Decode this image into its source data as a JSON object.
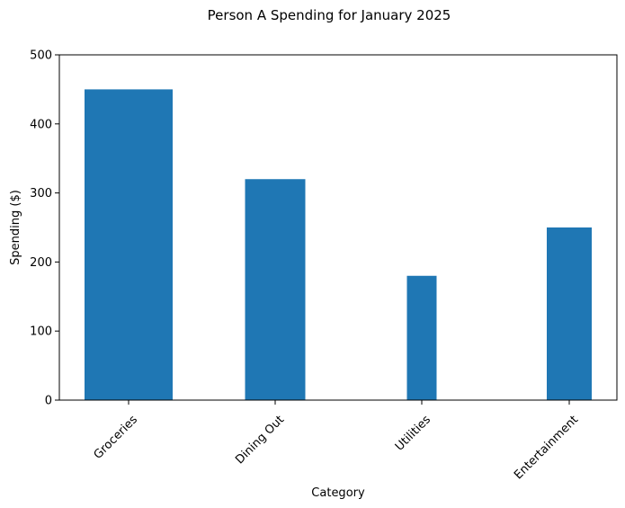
{
  "chart_data": {
    "type": "bar",
    "title": "Person A Spending for January 2025",
    "xlabel": "Category",
    "ylabel": "Spending ($)",
    "categories": [
      "Groceries",
      "Dining Out",
      "Utilities",
      "Entertainment"
    ],
    "values": [
      450,
      320,
      180,
      250
    ],
    "ylim": [
      0,
      500
    ],
    "yticks": [
      0,
      100,
      200,
      300,
      400,
      500
    ],
    "bar_color": "#1f77b4",
    "grid": false,
    "legend": "none"
  }
}
